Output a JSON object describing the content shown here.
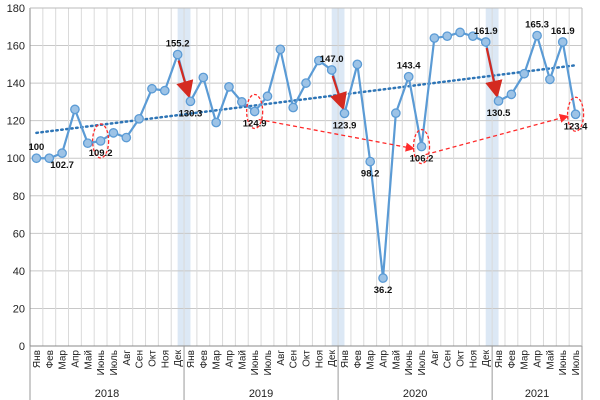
{
  "chart_data": {
    "type": "line",
    "ylim": [
      0,
      180
    ],
    "yticks": [
      0,
      20,
      40,
      60,
      80,
      100,
      120,
      140,
      160,
      180
    ],
    "categories": [
      "Янв",
      "Фев",
      "Мар",
      "Апр",
      "Май",
      "Июнь",
      "Июль",
      "Авг",
      "Сен",
      "Окт",
      "Ноя",
      "Дек",
      "Янв",
      "Фев",
      "Мар",
      "Апр",
      "Май",
      "Июнь",
      "Июль",
      "Авг",
      "Сен",
      "Окт",
      "Ноя",
      "Дек",
      "Янв",
      "Фев",
      "Мар",
      "Апр",
      "Май",
      "Июнь",
      "Июль",
      "Авг",
      "Сен",
      "Окт",
      "Ноя",
      "Дек",
      "Янв",
      "Фев",
      "Мар",
      "Апр",
      "Май",
      "Июнь",
      "Июль"
    ],
    "years": [
      {
        "label": "2018",
        "start": 0,
        "end": 12
      },
      {
        "label": "2019",
        "start": 12,
        "end": 24
      },
      {
        "label": "2020",
        "start": 24,
        "end": 36
      },
      {
        "label": "2021",
        "start": 36,
        "end": 43
      }
    ],
    "series": [
      {
        "values": [
          100,
          100,
          102.7,
          126,
          108,
          109.2,
          113.5,
          111,
          121,
          137,
          136,
          155.2,
          130.3,
          143,
          119,
          138,
          130,
          124.9,
          133,
          158,
          127,
          140,
          152,
          147.0,
          123.9,
          150,
          98.2,
          36.2,
          124,
          143.4,
          106.2,
          164,
          165,
          167,
          165,
          161.9,
          130.5,
          134,
          145,
          165.3,
          142,
          161.9,
          123.4
        ],
        "color": "#5b9bd5",
        "marker_fill": "#9dc3e6"
      }
    ],
    "trend": {
      "start": 113.5,
      "end": 149.5,
      "color": "#2e75b6"
    },
    "data_labels": [
      {
        "index": 0,
        "text": "100",
        "pos": "above"
      },
      {
        "index": 2,
        "text": "102.7",
        "pos": "below"
      },
      {
        "index": 5,
        "text": "109.2",
        "pos": "below"
      },
      {
        "index": 11,
        "text": "155.2",
        "pos": "above"
      },
      {
        "index": 12,
        "text": "130.3",
        "pos": "below"
      },
      {
        "index": 17,
        "text": "124.9",
        "pos": "below"
      },
      {
        "index": 23,
        "text": "147.0",
        "pos": "above"
      },
      {
        "index": 24,
        "text": "123.9",
        "pos": "below"
      },
      {
        "index": 26,
        "text": "98.2",
        "pos": "below"
      },
      {
        "index": 27,
        "text": "36.2",
        "pos": "below"
      },
      {
        "index": 29,
        "text": "143.4",
        "pos": "above"
      },
      {
        "index": 30,
        "text": "106.2",
        "pos": "below"
      },
      {
        "index": 35,
        "text": "161.9",
        "pos": "above"
      },
      {
        "index": 36,
        "text": "130.5",
        "pos": "below"
      },
      {
        "index": 39,
        "text": "165.3",
        "pos": "above"
      },
      {
        "index": 41,
        "text": "161.9",
        "pos": "above"
      },
      {
        "index": 42,
        "text": "123.4",
        "pos": "below"
      }
    ],
    "highlight_bands": [
      [
        11,
        12
      ],
      [
        23,
        24
      ],
      [
        35,
        36
      ]
    ],
    "highlight_color": "#dce8f5",
    "red_arrows": [
      [
        11,
        12
      ],
      [
        23,
        24
      ],
      [
        35,
        36
      ]
    ],
    "red_color": "#d42a20",
    "dashed_arrows": [
      [
        17,
        30
      ],
      [
        30,
        42
      ]
    ],
    "ellipses": [
      5,
      17,
      30,
      42
    ],
    "grid": true
  }
}
